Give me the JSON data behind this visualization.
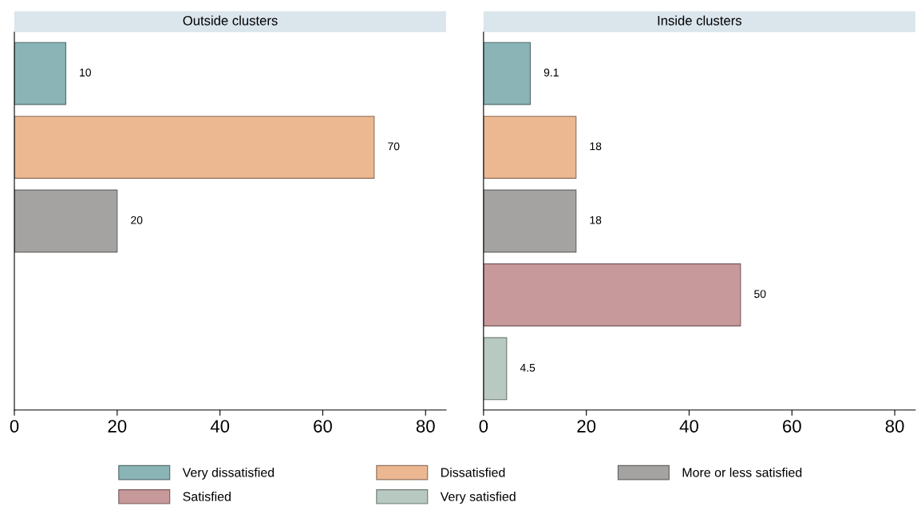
{
  "chart_data": [
    {
      "type": "bar",
      "orientation": "horizontal",
      "title": "Outside clusters",
      "categories": [
        null,
        null,
        null,
        null,
        null
      ],
      "series": [
        {
          "color": "#8ab4b6",
          "values": [
            10,
            null,
            null,
            null,
            null
          ]
        },
        {
          "color": "#ecb892",
          "values": [
            null,
            70,
            null,
            null,
            null
          ]
        },
        {
          "color": "#a5a3a1",
          "values": [
            null,
            null,
            20,
            null,
            null
          ]
        }
      ],
      "xlim": [
        0,
        84
      ],
      "xticks": [
        0,
        20,
        40,
        60,
        80
      ],
      "data_labels": true,
      "tick_labels": "x"
    },
    {
      "type": "bar",
      "orientation": "horizontal",
      "title": "Inside clusters",
      "categories": [
        null,
        null,
        null,
        null,
        null
      ],
      "series": [
        {
          "name": "Very dissatisfied",
          "color": "#8ab4b6",
          "values": [
            9.1,
            null,
            null,
            null,
            null
          ]
        },
        {
          "name": "Dissatisfied",
          "color": "#ecb892",
          "values": [
            null,
            18,
            null,
            null,
            null
          ]
        },
        {
          "name": "More or less satisfied",
          "color": "#a5a3a1",
          "values": [
            null,
            null,
            18,
            null,
            null
          ]
        },
        {
          "name": "Satisfied",
          "color": "#c8999b",
          "values": [
            null,
            null,
            null,
            50,
            null
          ]
        },
        {
          "name": "Very satisfied",
          "color": "#b8c9c1",
          "values": [
            null,
            null,
            null,
            null,
            4.5
          ]
        }
      ],
      "xlim": [
        0,
        84
      ],
      "xticks": [
        0,
        20,
        40,
        60,
        80
      ],
      "data_labels": true,
      "tick_labels": "x",
      "legend": "bottom"
    }
  ]
}
